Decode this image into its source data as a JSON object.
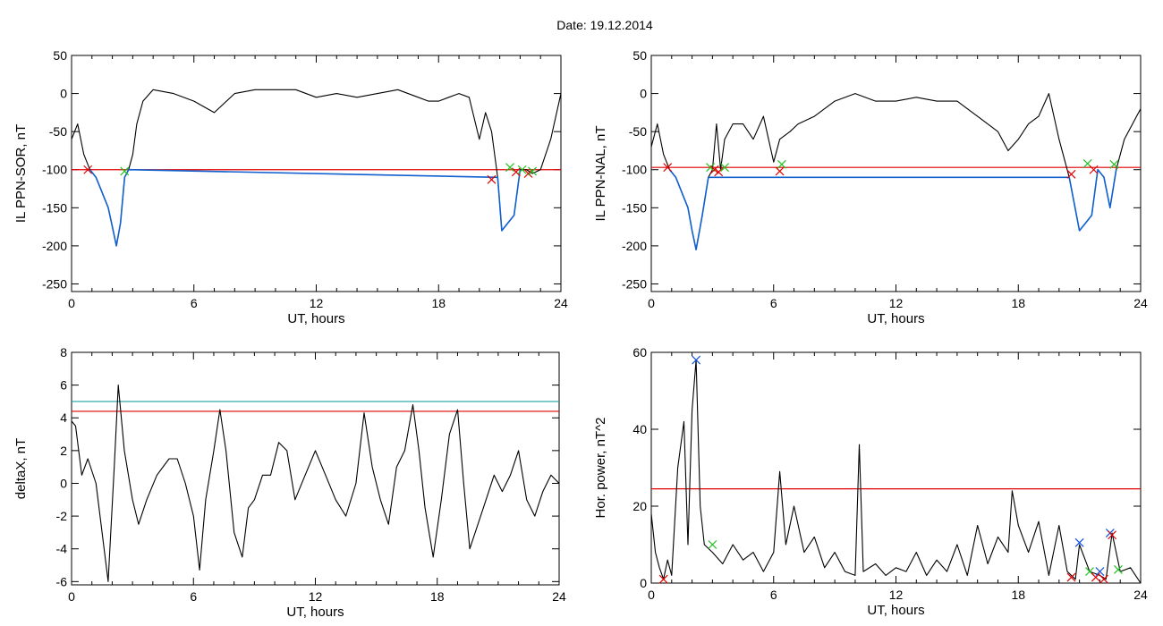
{
  "title": "Date:  19.12.2014",
  "colors": {
    "background": "#ffffff",
    "axes": "#000000",
    "trace": "#000000",
    "highlight": "#1060d0",
    "threshold_red": "#e00000",
    "threshold_teal": "#1aa0a0",
    "marker_red": "#e00000",
    "marker_green": "#20c020",
    "marker_blue": "#1050e0"
  },
  "chart_data": [
    {
      "id": "ppn-sor",
      "type": "line",
      "xlabel": "UT, hours",
      "ylabel": "IL PPN-SOR, nT",
      "xlim": [
        0,
        24
      ],
      "ylim": [
        -260,
        50
      ],
      "xticks": [
        0,
        6,
        12,
        18,
        24
      ],
      "yticks": [
        50,
        0,
        -50,
        -100,
        -150,
        -200,
        -250
      ],
      "threshold": {
        "y": -100,
        "color": "red"
      },
      "series": [
        {
          "color": "black",
          "x": [
            0,
            0.3,
            0.6,
            0.9,
            1.2,
            1.5,
            1.8,
            2.0,
            2.2,
            2.4,
            2.6,
            2.8,
            3.0,
            3.2,
            3.5,
            4.0,
            5.0,
            6.0,
            7.0,
            8.0,
            9.0,
            10.0,
            11.0,
            12.0,
            13.0,
            14.0,
            15.0,
            16.0,
            17.0,
            17.5,
            18.0,
            18.5,
            19.0,
            19.5,
            20.0,
            20.3,
            20.6,
            20.9,
            21.1,
            21.4,
            21.7,
            22.0,
            22.3,
            22.6,
            23.0,
            23.5,
            24.0
          ],
          "y": [
            -60,
            -40,
            -80,
            -100,
            -110,
            -130,
            -150,
            -175,
            -200,
            -170,
            -110,
            -100,
            -80,
            -40,
            -10,
            5,
            0,
            -10,
            -25,
            0,
            5,
            5,
            5,
            -5,
            0,
            -5,
            0,
            5,
            -5,
            -10,
            -10,
            -5,
            0,
            -5,
            -60,
            -25,
            -50,
            -110,
            -180,
            -170,
            -160,
            -100,
            -100,
            -105,
            -100,
            -60,
            0
          ]
        },
        {
          "color": "blue",
          "x": [
            0.9,
            1.2,
            1.5,
            1.8,
            2.0,
            2.2,
            2.4,
            2.6,
            2.8,
            20.9,
            21.1,
            21.4,
            21.7,
            22.0
          ],
          "y": [
            -100,
            -110,
            -130,
            -150,
            -175,
            -200,
            -170,
            -110,
            -100,
            -110,
            -180,
            -170,
            -160,
            -100
          ]
        }
      ],
      "markers": [
        {
          "x": 0.8,
          "y": -100,
          "color": "red"
        },
        {
          "x": 2.6,
          "y": -102,
          "color": "green"
        },
        {
          "x": 20.6,
          "y": -113,
          "color": "red"
        },
        {
          "x": 21.5,
          "y": -97,
          "color": "green"
        },
        {
          "x": 21.8,
          "y": -103,
          "color": "red"
        },
        {
          "x": 22.1,
          "y": -100,
          "color": "green"
        },
        {
          "x": 22.4,
          "y": -105,
          "color": "red"
        },
        {
          "x": 22.6,
          "y": -102,
          "color": "green"
        }
      ]
    },
    {
      "id": "ppn-nal",
      "type": "line",
      "xlabel": "UT, hours",
      "ylabel": "IL PPN-NAL, nT",
      "xlim": [
        0,
        24
      ],
      "ylim": [
        -260,
        50
      ],
      "xticks": [
        0,
        6,
        12,
        18,
        24
      ],
      "yticks": [
        50,
        0,
        -50,
        -100,
        -150,
        -200,
        -250
      ],
      "threshold": {
        "y": -97,
        "color": "red"
      },
      "series": [
        {
          "color": "black",
          "x": [
            0,
            0.3,
            0.6,
            0.9,
            1.2,
            1.5,
            1.8,
            2.0,
            2.2,
            2.5,
            2.8,
            3.0,
            3.2,
            3.4,
            3.6,
            4.0,
            4.5,
            5.0,
            5.5,
            6.0,
            6.3,
            6.8,
            7.2,
            8.0,
            9.0,
            10.0,
            11.0,
            12.0,
            13.0,
            14.0,
            15.0,
            16.0,
            17.0,
            17.5,
            18.0,
            18.5,
            19.0,
            19.5,
            20.0,
            20.5,
            21.0,
            21.3,
            21.6,
            21.9,
            22.2,
            22.5,
            22.8,
            23.2,
            24.0
          ],
          "y": [
            -70,
            -40,
            -80,
            -100,
            -110,
            -130,
            -150,
            -180,
            -205,
            -160,
            -110,
            -100,
            -40,
            -100,
            -60,
            -40,
            -40,
            -60,
            -30,
            -90,
            -60,
            -50,
            -40,
            -30,
            -10,
            0,
            -10,
            -10,
            -5,
            -10,
            -10,
            -30,
            -50,
            -75,
            -60,
            -40,
            -30,
            0,
            -60,
            -110,
            -180,
            -170,
            -160,
            -100,
            -110,
            -150,
            -100,
            -60,
            -20
          ]
        },
        {
          "color": "blue",
          "x": [
            0.9,
            1.2,
            1.5,
            1.8,
            2.0,
            2.2,
            2.5,
            2.8,
            20.5,
            21.0,
            21.3,
            21.6,
            21.9,
            22.2,
            22.5,
            22.8
          ],
          "y": [
            -100,
            -110,
            -130,
            -150,
            -180,
            -205,
            -160,
            -110,
            -110,
            -180,
            -170,
            -160,
            -100,
            -110,
            -150,
            -100
          ]
        }
      ],
      "markers": [
        {
          "x": 0.8,
          "y": -97,
          "color": "red"
        },
        {
          "x": 2.9,
          "y": -97,
          "color": "green"
        },
        {
          "x": 3.1,
          "y": -100,
          "color": "red"
        },
        {
          "x": 3.3,
          "y": -103,
          "color": "red"
        },
        {
          "x": 3.6,
          "y": -97,
          "color": "green"
        },
        {
          "x": 6.3,
          "y": -102,
          "color": "red"
        },
        {
          "x": 6.4,
          "y": -93,
          "color": "green"
        },
        {
          "x": 20.6,
          "y": -106,
          "color": "red"
        },
        {
          "x": 21.4,
          "y": -92,
          "color": "green"
        },
        {
          "x": 21.7,
          "y": -100,
          "color": "red"
        },
        {
          "x": 22.7,
          "y": -93,
          "color": "green"
        }
      ]
    },
    {
      "id": "deltax",
      "type": "line",
      "xlabel": "UT, hours",
      "ylabel": "deltaX, nT",
      "xlim": [
        0,
        24
      ],
      "ylim": [
        -6.2,
        8
      ],
      "xticks": [
        0,
        6,
        12,
        18,
        24
      ],
      "yticks": [
        8,
        6,
        4,
        2,
        0,
        -2,
        -4,
        -6
      ],
      "thresholds": [
        {
          "y": 5.0,
          "color": "teal"
        },
        {
          "y": 4.4,
          "color": "red"
        }
      ],
      "series": [
        {
          "color": "black",
          "x": [
            0,
            0.2,
            0.5,
            0.8,
            1.2,
            1.5,
            1.8,
            2.1,
            2.3,
            2.6,
            3.0,
            3.3,
            3.7,
            4.2,
            4.8,
            5.2,
            5.6,
            6.0,
            6.3,
            6.6,
            7.0,
            7.3,
            7.6,
            8.0,
            8.4,
            8.7,
            9.0,
            9.4,
            9.8,
            10.2,
            10.6,
            11.0,
            11.5,
            12.0,
            12.5,
            13.0,
            13.5,
            14.0,
            14.4,
            14.8,
            15.2,
            15.6,
            16.0,
            16.4,
            16.8,
            17.1,
            17.4,
            17.8,
            18.2,
            18.6,
            19.0,
            19.3,
            19.6,
            20.0,
            20.4,
            20.8,
            21.2,
            21.6,
            22.0,
            22.4,
            22.8,
            23.2,
            23.6,
            24.0
          ],
          "y": [
            3.8,
            3.5,
            0.5,
            1.5,
            0.0,
            -3.0,
            -6.0,
            1.0,
            6.0,
            2.0,
            -1.0,
            -2.5,
            -1.0,
            0.5,
            1.5,
            1.5,
            0.0,
            -2.0,
            -5.3,
            -1.0,
            2.0,
            4.5,
            2.0,
            -3.0,
            -4.5,
            -1.5,
            -1.0,
            0.5,
            0.5,
            2.5,
            2.0,
            -1.0,
            0.5,
            2.0,
            0.5,
            -1.0,
            -2.0,
            0.0,
            4.3,
            1.0,
            -1.0,
            -2.5,
            1.0,
            2.0,
            4.8,
            2.0,
            -1.5,
            -4.5,
            -1.0,
            3.0,
            4.5,
            0.0,
            -4.0,
            -2.5,
            -1.0,
            0.5,
            -0.5,
            0.5,
            2.0,
            -1.0,
            -2.0,
            -0.5,
            0.5,
            0.0
          ]
        }
      ]
    },
    {
      "id": "hor-power",
      "type": "line",
      "xlabel": "UT, hours",
      "ylabel": "Hor. power, nT^2",
      "xlim": [
        0,
        24
      ],
      "ylim": [
        0,
        60
      ],
      "xticks": [
        0,
        6,
        12,
        18,
        24
      ],
      "yticks": [
        60,
        40,
        20,
        0
      ],
      "threshold": {
        "y": 24.5,
        "color": "red"
      },
      "series": [
        {
          "color": "black",
          "x": [
            0,
            0.2,
            0.4,
            0.6,
            0.8,
            1.0,
            1.3,
            1.6,
            1.8,
            2.0,
            2.2,
            2.4,
            2.6,
            3.0,
            3.5,
            4.0,
            4.5,
            5.0,
            5.5,
            6.0,
            6.3,
            6.6,
            7.0,
            7.5,
            8.0,
            8.5,
            9.0,
            9.5,
            10.0,
            10.2,
            10.4,
            11.0,
            11.5,
            12.0,
            12.5,
            13.0,
            13.5,
            14.0,
            14.5,
            15.0,
            15.5,
            16.0,
            16.5,
            17.0,
            17.5,
            17.7,
            18.0,
            18.5,
            19.0,
            19.5,
            20.0,
            20.4,
            20.8,
            21.0,
            21.5,
            22.0,
            22.3,
            22.6,
            23.0,
            23.5,
            24.0
          ],
          "y": [
            18,
            8,
            4,
            1,
            6,
            2,
            30,
            42,
            10,
            45,
            58,
            20,
            10,
            8,
            5,
            10,
            6,
            8,
            3,
            8,
            29,
            10,
            20,
            8,
            12,
            4,
            8,
            3,
            2,
            36,
            3,
            5,
            2,
            4,
            3,
            8,
            2,
            6,
            3,
            10,
            2,
            15,
            5,
            12,
            8,
            24,
            15,
            8,
            16,
            2,
            15,
            3,
            1,
            10,
            3,
            2,
            1,
            13,
            3,
            4,
            0
          ]
        }
      ],
      "markers": [
        {
          "x": 0.6,
          "y": 1,
          "color": "red"
        },
        {
          "x": 2.2,
          "y": 58,
          "color": "blue"
        },
        {
          "x": 3.0,
          "y": 10,
          "color": "green"
        },
        {
          "x": 20.6,
          "y": 1.5,
          "color": "red"
        },
        {
          "x": 21.0,
          "y": 10.5,
          "color": "blue"
        },
        {
          "x": 21.5,
          "y": 3,
          "color": "green"
        },
        {
          "x": 21.8,
          "y": 1.5,
          "color": "red"
        },
        {
          "x": 22.0,
          "y": 3,
          "color": "blue"
        },
        {
          "x": 22.2,
          "y": 1,
          "color": "red"
        },
        {
          "x": 22.5,
          "y": 13,
          "color": "blue"
        },
        {
          "x": 22.6,
          "y": 12.5,
          "color": "red"
        },
        {
          "x": 22.9,
          "y": 3.5,
          "color": "green"
        }
      ]
    }
  ]
}
